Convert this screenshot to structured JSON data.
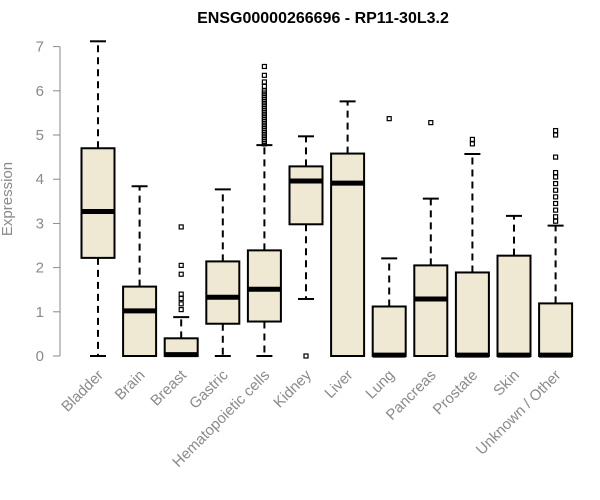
{
  "chart_data": {
    "type": "box",
    "title": "ENSG00000266696 - RP11-30L3.2",
    "xlabel": "",
    "ylabel": "Expression",
    "ylim": [
      0,
      7
    ],
    "yticks": [
      0,
      1,
      2,
      3,
      4,
      5,
      6,
      7
    ],
    "categories": [
      "Bladder",
      "Brain",
      "Breast",
      "Gastric",
      "Hematopoietic cells",
      "Kidney",
      "Liver",
      "Lung",
      "Pancreas",
      "Prostate",
      "Skin",
      "Unknown / Other"
    ],
    "boxes": [
      {
        "whisker_low": 0,
        "q1": 2.22,
        "median": 3.27,
        "q3": 4.7,
        "whisker_high": 7.12,
        "outliers": []
      },
      {
        "whisker_low": 0,
        "q1": 0,
        "median": 1.02,
        "q3": 1.57,
        "whisker_high": 3.84,
        "outliers": []
      },
      {
        "whisker_low": 0,
        "q1": 0,
        "median": 0.03,
        "q3": 0.4,
        "whisker_high": 0.88,
        "outliers": [
          1.05,
          1.18,
          1.3,
          1.4,
          1.85,
          2.05,
          2.92
        ]
      },
      {
        "whisker_low": 0,
        "q1": 0.73,
        "median": 1.33,
        "q3": 2.14,
        "whisker_high": 3.77,
        "outliers": []
      },
      {
        "whisker_low": 0,
        "q1": 0.78,
        "median": 1.51,
        "q3": 2.39,
        "whisker_high": 4.77,
        "outliers": [
          4.8,
          4.85,
          4.9,
          4.95,
          5.0,
          5.05,
          5.1,
          5.15,
          5.2,
          5.25,
          5.3,
          5.35,
          5.4,
          5.45,
          5.5,
          5.55,
          5.6,
          5.65,
          5.7,
          5.75,
          5.8,
          5.85,
          5.9,
          5.95,
          6.0,
          6.1,
          6.2,
          6.35,
          6.55
        ]
      },
      {
        "whisker_low": 1.29,
        "q1": 2.98,
        "median": 3.96,
        "q3": 4.29,
        "whisker_high": 4.97,
        "outliers": [
          0
        ]
      },
      {
        "whisker_low": 0,
        "q1": 0,
        "median": 3.91,
        "q3": 4.58,
        "whisker_high": 5.76,
        "outliers": []
      },
      {
        "whisker_low": 0,
        "q1": 0,
        "median": 0.02,
        "q3": 1.12,
        "whisker_high": 2.21,
        "outliers": [
          5.37
        ]
      },
      {
        "whisker_low": 0,
        "q1": 0,
        "median": 1.29,
        "q3": 2.05,
        "whisker_high": 3.56,
        "outliers": [
          5.28
        ]
      },
      {
        "whisker_low": 0,
        "q1": 0,
        "median": 0.02,
        "q3": 1.89,
        "whisker_high": 4.57,
        "outliers": [
          4.8,
          4.9
        ]
      },
      {
        "whisker_low": 0,
        "q1": 0,
        "median": 0.02,
        "q3": 2.27,
        "whisker_high": 3.17,
        "outliers": []
      },
      {
        "whisker_low": 0,
        "q1": 0,
        "median": 0.02,
        "q3": 1.19,
        "whisker_high": 2.95,
        "outliers": [
          3.05,
          3.15,
          3.3,
          3.45,
          3.6,
          3.75,
          3.9,
          4.05,
          4.15,
          4.5,
          5.0,
          5.1
        ]
      }
    ],
    "grid": false,
    "box_fill": "#efe8d2"
  }
}
